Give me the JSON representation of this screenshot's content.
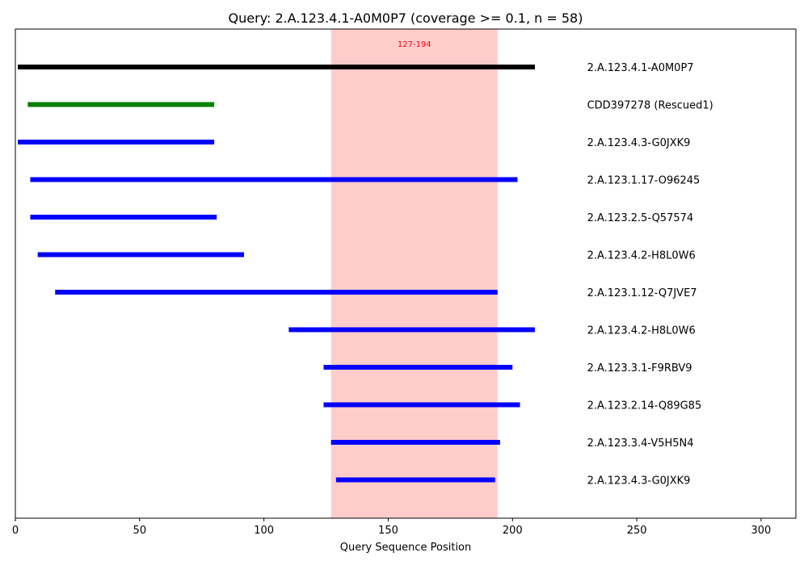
{
  "chart_data": {
    "type": "range-bar",
    "title": "Query: 2.A.123.4.1-A0M0P7 (coverage >= 0.1, n = 58)",
    "xlabel": "Query Sequence Position",
    "ylabel": "",
    "xlim": [
      0,
      314
    ],
    "xticks": [
      0,
      50,
      100,
      150,
      200,
      250,
      300
    ],
    "grid": false,
    "highlight_region": {
      "start": 127,
      "end": 194,
      "label": "127-194",
      "color": "#ff9999",
      "label_color": "#ff0000"
    },
    "label_x": 230,
    "series_colors": {
      "query": "#000000",
      "rescued": "#008000",
      "hit": "#0000ff"
    },
    "rows": [
      {
        "label": "2.A.123.4.1-A0M0P7",
        "start": 1,
        "end": 209,
        "kind": "query"
      },
      {
        "label": "CDD397278 (Rescued1)",
        "start": 5,
        "end": 80,
        "kind": "rescued"
      },
      {
        "label": "2.A.123.4.3-G0JXK9",
        "start": 1,
        "end": 80,
        "kind": "hit"
      },
      {
        "label": "2.A.123.1.17-O96245",
        "start": 6,
        "end": 202,
        "kind": "hit"
      },
      {
        "label": "2.A.123.2.5-Q57574",
        "start": 6,
        "end": 81,
        "kind": "hit"
      },
      {
        "label": "2.A.123.4.2-H8L0W6",
        "start": 9,
        "end": 92,
        "kind": "hit"
      },
      {
        "label": "2.A.123.1.12-Q7JVE7",
        "start": 16,
        "end": 194,
        "kind": "hit"
      },
      {
        "label": "2.A.123.4.2-H8L0W6",
        "start": 110,
        "end": 209,
        "kind": "hit"
      },
      {
        "label": "2.A.123.3.1-F9RBV9",
        "start": 124,
        "end": 200,
        "kind": "hit"
      },
      {
        "label": "2.A.123.2.14-Q89G85",
        "start": 124,
        "end": 203,
        "kind": "hit"
      },
      {
        "label": "2.A.123.3.4-V5H5N4",
        "start": 127,
        "end": 195,
        "kind": "hit"
      },
      {
        "label": "2.A.123.4.3-G0JXK9",
        "start": 129,
        "end": 193,
        "kind": "hit"
      }
    ]
  }
}
